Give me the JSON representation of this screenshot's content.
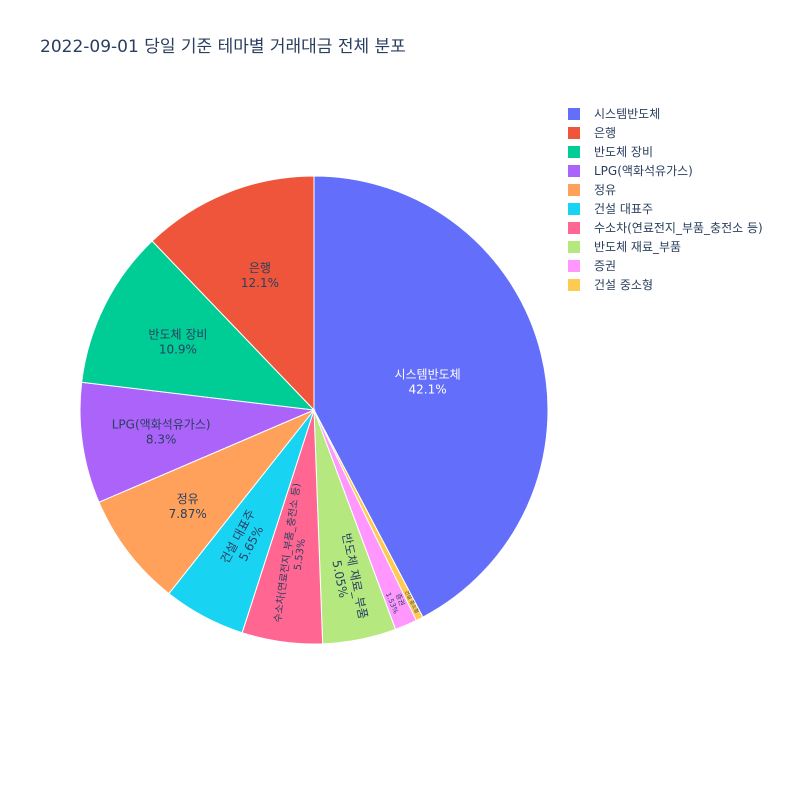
{
  "chart_data": {
    "type": "pie",
    "title": "2022-09-01 당일 기준 테마별 거래대금 전체 분포",
    "slices": [
      {
        "label": "시스템반도체",
        "value": 42.1,
        "percent_text": "42.1%",
        "color": "#636efa",
        "text_color": "#ffffff"
      },
      {
        "label": "건설 중소형",
        "value": 0.5,
        "percent_text": "",
        "color": "#fecb52",
        "text_color": "#2a3f5f"
      },
      {
        "label": "증권",
        "value": 1.53,
        "percent_text": "1.53%",
        "color": "#ff97ff",
        "text_color": "#2a3f5f"
      },
      {
        "label": "반도체 재료_부품",
        "value": 5.05,
        "percent_text": "5.05%",
        "color": "#b6e880",
        "text_color": "#2a3f5f"
      },
      {
        "label": "수소차(연료전지_부품_충전소 등)",
        "value": 5.53,
        "percent_text": "5.53%",
        "color": "#ff6692",
        "text_color": "#2a3f5f"
      },
      {
        "label": "건설 대표주",
        "value": 5.65,
        "percent_text": "5.65%",
        "color": "#19d3f3",
        "text_color": "#2a3f5f"
      },
      {
        "label": "정유",
        "value": 7.87,
        "percent_text": "7.87%",
        "color": "#ffa15a",
        "text_color": "#2a3f5f"
      },
      {
        "label": "LPG(액화석유가스)",
        "value": 8.3,
        "percent_text": "8.3%",
        "color": "#ab63fa",
        "text_color": "#2a3f5f"
      },
      {
        "label": "반도체 장비",
        "value": 10.9,
        "percent_text": "10.9%",
        "color": "#00cc96",
        "text_color": "#2a3f5f"
      },
      {
        "label": "은행",
        "value": 12.1,
        "percent_text": "12.1%",
        "color": "#ef553b",
        "text_color": "#2a3f5f"
      }
    ],
    "legend": {
      "placement": "top-right",
      "entries": [
        {
          "label": "시스템반도체",
          "color": "#636efa"
        },
        {
          "label": "은행",
          "color": "#ef553b"
        },
        {
          "label": "반도체 장비",
          "color": "#00cc96"
        },
        {
          "label": "LPG(액화석유가스)",
          "color": "#ab63fa"
        },
        {
          "label": "정유",
          "color": "#ffa15a"
        },
        {
          "label": "건설 대표주",
          "color": "#19d3f3"
        },
        {
          "label": "수소차(연료전지_부품_충전소 등)",
          "color": "#ff6692"
        },
        {
          "label": "반도체 재료_부품",
          "color": "#b6e880"
        },
        {
          "label": "증권",
          "color": "#ff97ff"
        },
        {
          "label": "건설 중소형",
          "color": "#fecb52"
        }
      ]
    }
  }
}
